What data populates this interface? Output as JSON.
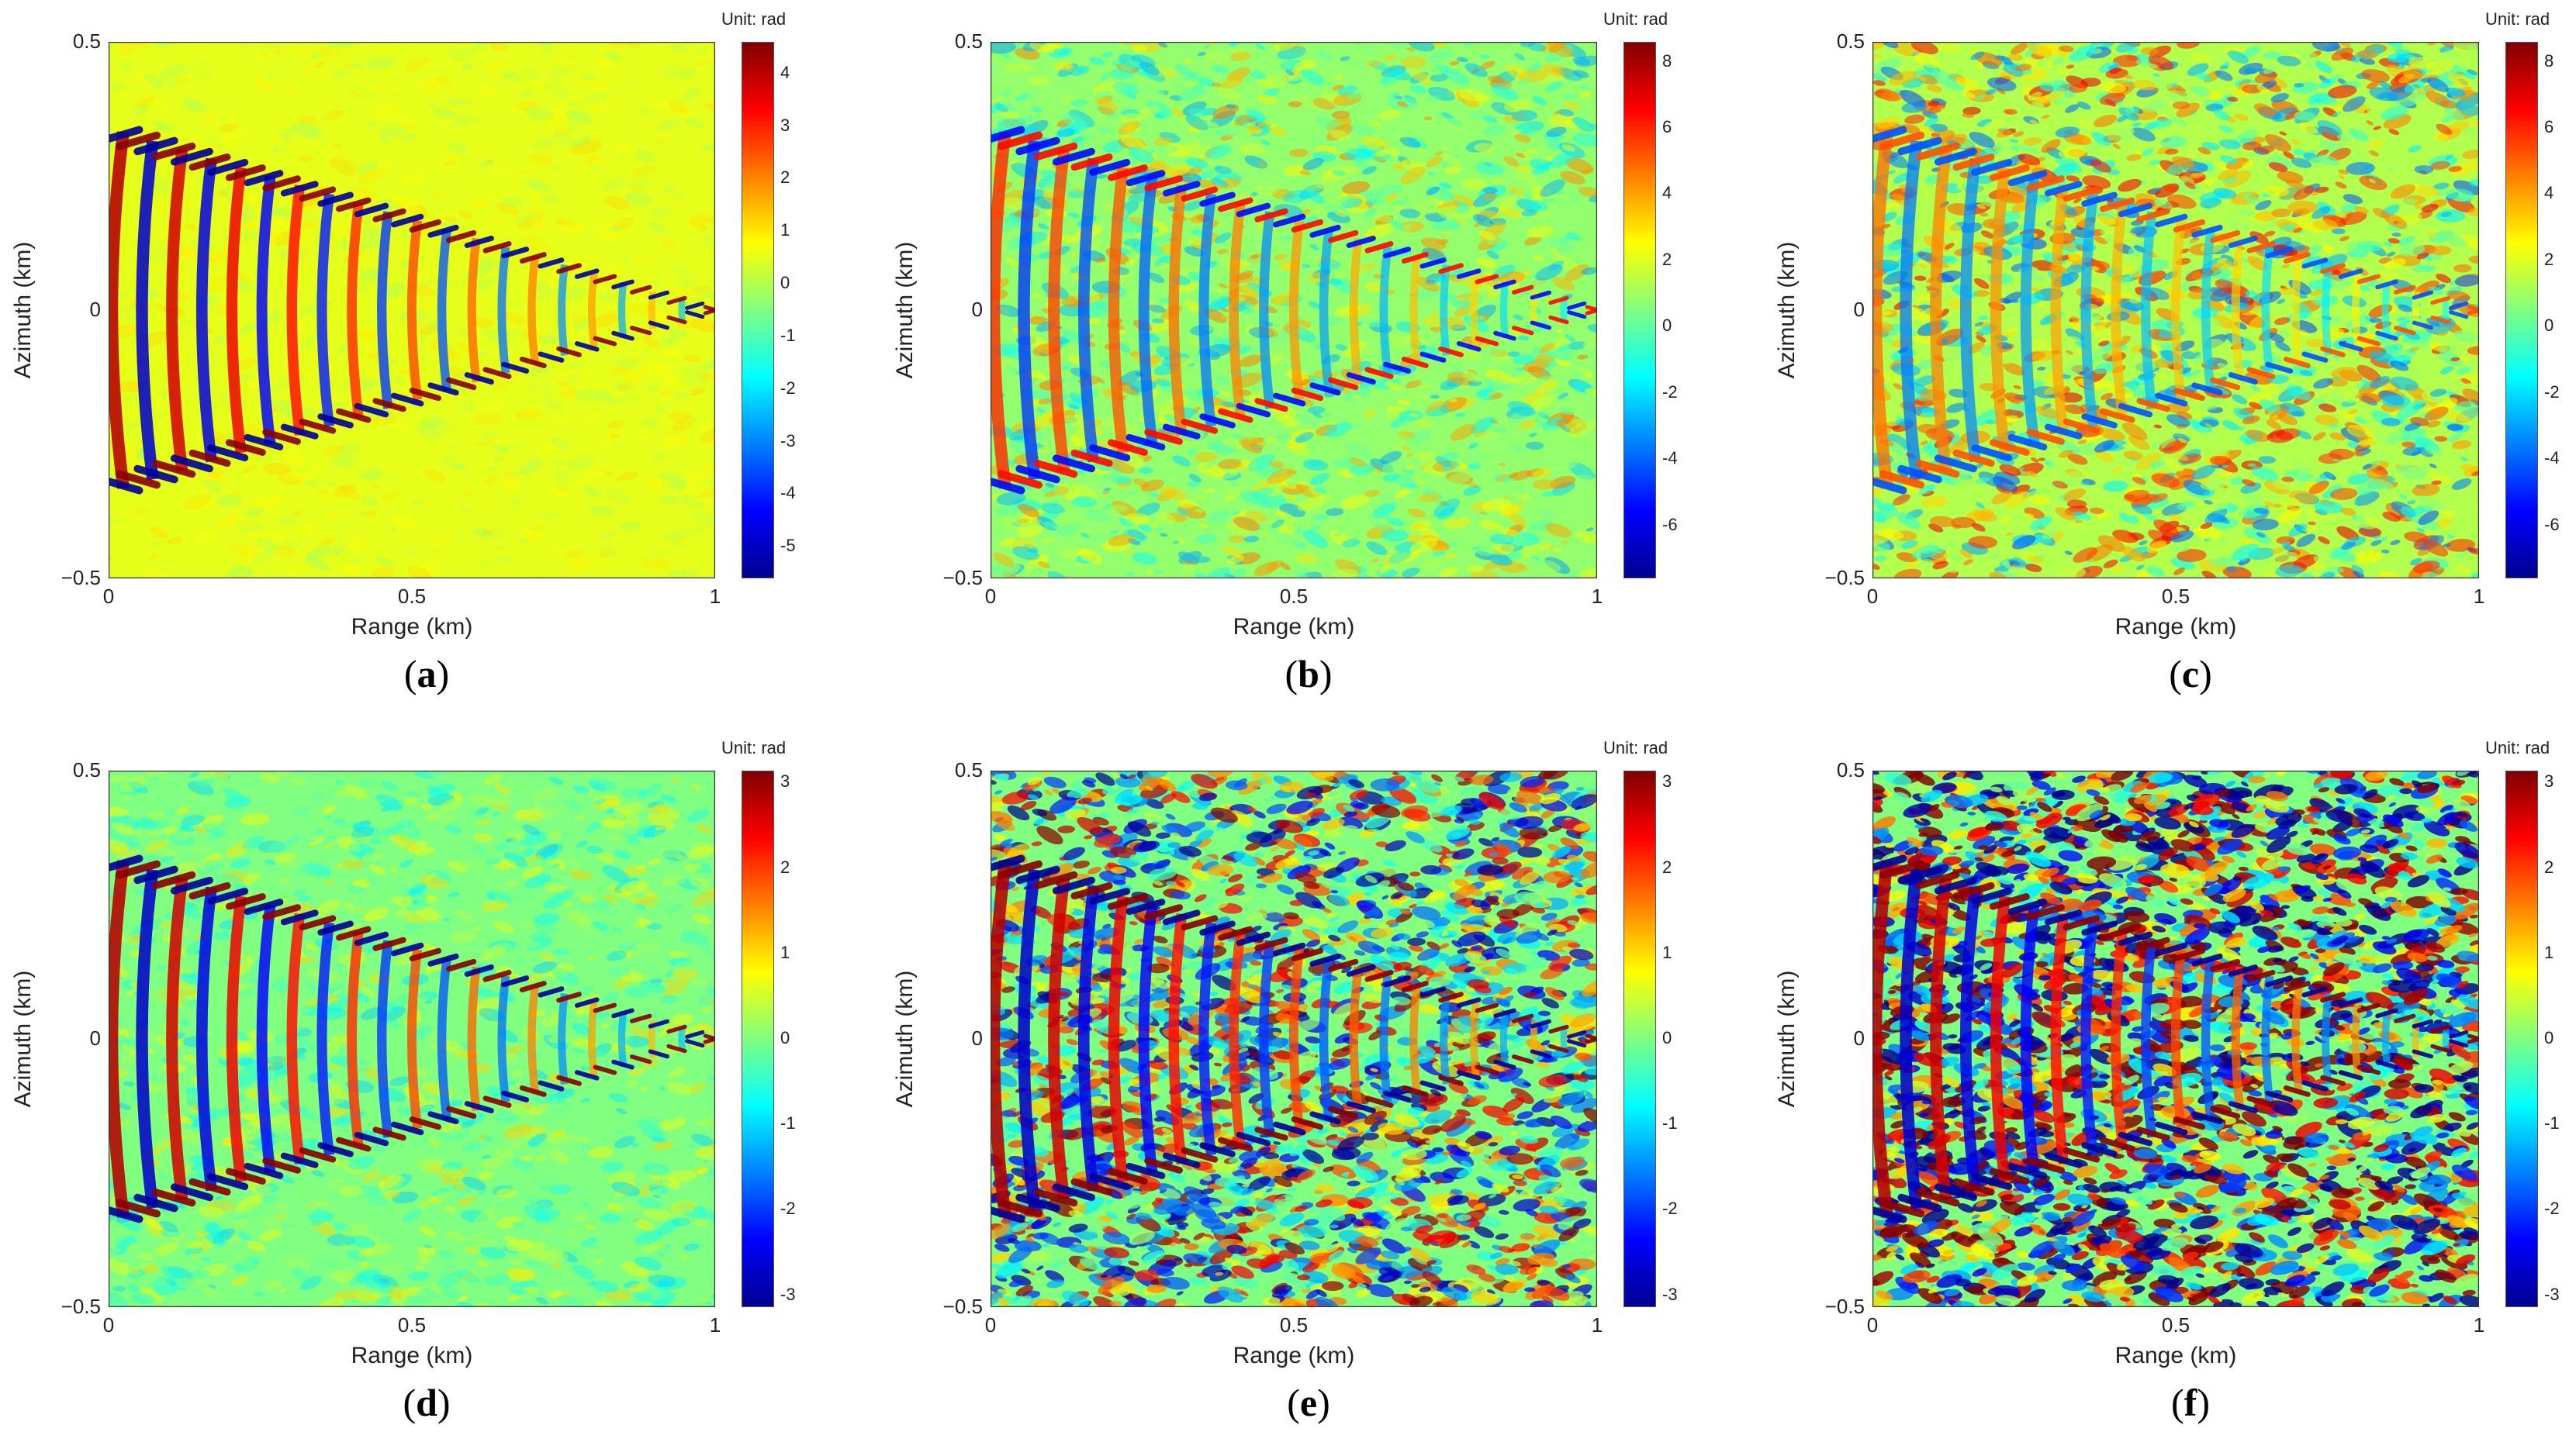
{
  "panels": [
    {
      "id": "a",
      "caption_letter": "a",
      "colorbar_unit": "Unit: rad",
      "colorbar_ticks": [
        "4",
        "3",
        "2",
        "1",
        "0",
        "-1",
        "-2",
        "-3",
        "-4",
        "-5"
      ]
    },
    {
      "id": "b",
      "caption_letter": "b",
      "colorbar_unit": "Unit: rad",
      "colorbar_ticks": [
        "8",
        "6",
        "4",
        "2",
        "0",
        "-2",
        "-4",
        "-6"
      ]
    },
    {
      "id": "c",
      "caption_letter": "c",
      "colorbar_unit": "Unit: rad",
      "colorbar_ticks": [
        "8",
        "6",
        "4",
        "2",
        "0",
        "-2",
        "-4",
        "-6"
      ]
    },
    {
      "id": "d",
      "caption_letter": "d",
      "colorbar_unit": "Unit: rad",
      "colorbar_ticks": [
        "3",
        "2",
        "1",
        "0",
        "-1",
        "-2",
        "-3"
      ]
    },
    {
      "id": "e",
      "caption_letter": "e",
      "colorbar_unit": "Unit: rad",
      "colorbar_ticks": [
        "3",
        "2",
        "1",
        "0",
        "-1",
        "-2",
        "-3"
      ]
    },
    {
      "id": "f",
      "caption_letter": "f",
      "colorbar_unit": "Unit: rad",
      "colorbar_ticks": [
        "3",
        "2",
        "1",
        "0",
        "-1",
        "-2",
        "-3"
      ]
    }
  ],
  "chart_data": [
    {
      "type": "heatmap",
      "panel": "a",
      "xlabel": "Range (km)",
      "ylabel": "Azimuth (km)",
      "xlim": [
        0,
        1
      ],
      "ylim": [
        -0.5,
        0.5
      ],
      "x_ticks": [
        "0",
        "0.5",
        "1"
      ],
      "y_ticks": [
        "0.5",
        "0",
        "−0.5"
      ],
      "colorbar_label": "Unit: rad",
      "clim": [
        -5.6,
        4.6
      ],
      "colormap": "jet",
      "pattern": "V-shaped ship wake (Kelvin wave pattern) with apex at range 1 km, azimuth 0"
    },
    {
      "type": "heatmap",
      "panel": "b",
      "xlabel": "Range (km)",
      "ylabel": "Azimuth (km)",
      "xlim": [
        0,
        1
      ],
      "ylim": [
        -0.5,
        0.5
      ],
      "x_ticks": [
        "0",
        "0.5",
        "1"
      ],
      "y_ticks": [
        "0.5",
        "0",
        "−0.5"
      ],
      "colorbar_label": "Unit: rad",
      "clim": [
        -7.6,
        8.6
      ],
      "colormap": "jet",
      "pattern": "V-shaped ship wake (Kelvin wave pattern) with apex at range 1 km, azimuth 0"
    },
    {
      "type": "heatmap",
      "panel": "c",
      "xlabel": "Range (km)",
      "ylabel": "Azimuth (km)",
      "xlim": [
        0,
        1
      ],
      "ylim": [
        -0.5,
        0.5
      ],
      "x_ticks": [
        "0",
        "0.5",
        "1"
      ],
      "y_ticks": [
        "0.5",
        "0",
        "−0.5"
      ],
      "colorbar_label": "Unit: rad",
      "clim": [
        -7.6,
        8.6
      ],
      "colormap": "jet",
      "pattern": "V-shaped ship wake (Kelvin wave pattern) with apex at range 1 km, azimuth 0"
    },
    {
      "type": "heatmap",
      "panel": "d",
      "xlabel": "Range (km)",
      "ylabel": "Azimuth (km)",
      "xlim": [
        0,
        1
      ],
      "ylim": [
        -0.5,
        0.5
      ],
      "x_ticks": [
        "0",
        "0.5",
        "1"
      ],
      "y_ticks": [
        "0.5",
        "0",
        "−0.5"
      ],
      "colorbar_label": "Unit: rad",
      "clim": [
        -3.14,
        3.14
      ],
      "colormap": "jet",
      "pattern": "V-shaped ship wake (Kelvin wave pattern) with apex at range 1 km, azimuth 0"
    },
    {
      "type": "heatmap",
      "panel": "e",
      "xlabel": "Range (km)",
      "ylabel": "Azimuth (km)",
      "xlim": [
        0,
        1
      ],
      "ylim": [
        -0.5,
        0.5
      ],
      "x_ticks": [
        "0",
        "0.5",
        "1"
      ],
      "y_ticks": [
        "0.5",
        "0",
        "−0.5"
      ],
      "colorbar_label": "Unit: rad",
      "clim": [
        -3.14,
        3.14
      ],
      "colormap": "jet",
      "pattern": "V-shaped ship wake (Kelvin wave pattern) with apex at range 1 km, azimuth 0"
    },
    {
      "type": "heatmap",
      "panel": "f",
      "xlabel": "Range (km)",
      "ylabel": "Azimuth (km)",
      "xlim": [
        0,
        1
      ],
      "ylim": [
        -0.5,
        0.5
      ],
      "x_ticks": [
        "0",
        "0.5",
        "1"
      ],
      "y_ticks": [
        "0.5",
        "0",
        "−0.5"
      ],
      "colorbar_label": "Unit: rad",
      "clim": [
        -3.14,
        3.14
      ],
      "colormap": "jet",
      "pattern": "V-shaped ship wake (Kelvin wave pattern) with apex at range 1 km, azimuth 0"
    }
  ],
  "colors": {
    "jet": [
      "#00008f",
      "#0000ff",
      "#0080ff",
      "#00ffff",
      "#80ff80",
      "#ffff00",
      "#ff8000",
      "#ff0000",
      "#800000"
    ],
    "background_field": "#9ae68a"
  }
}
